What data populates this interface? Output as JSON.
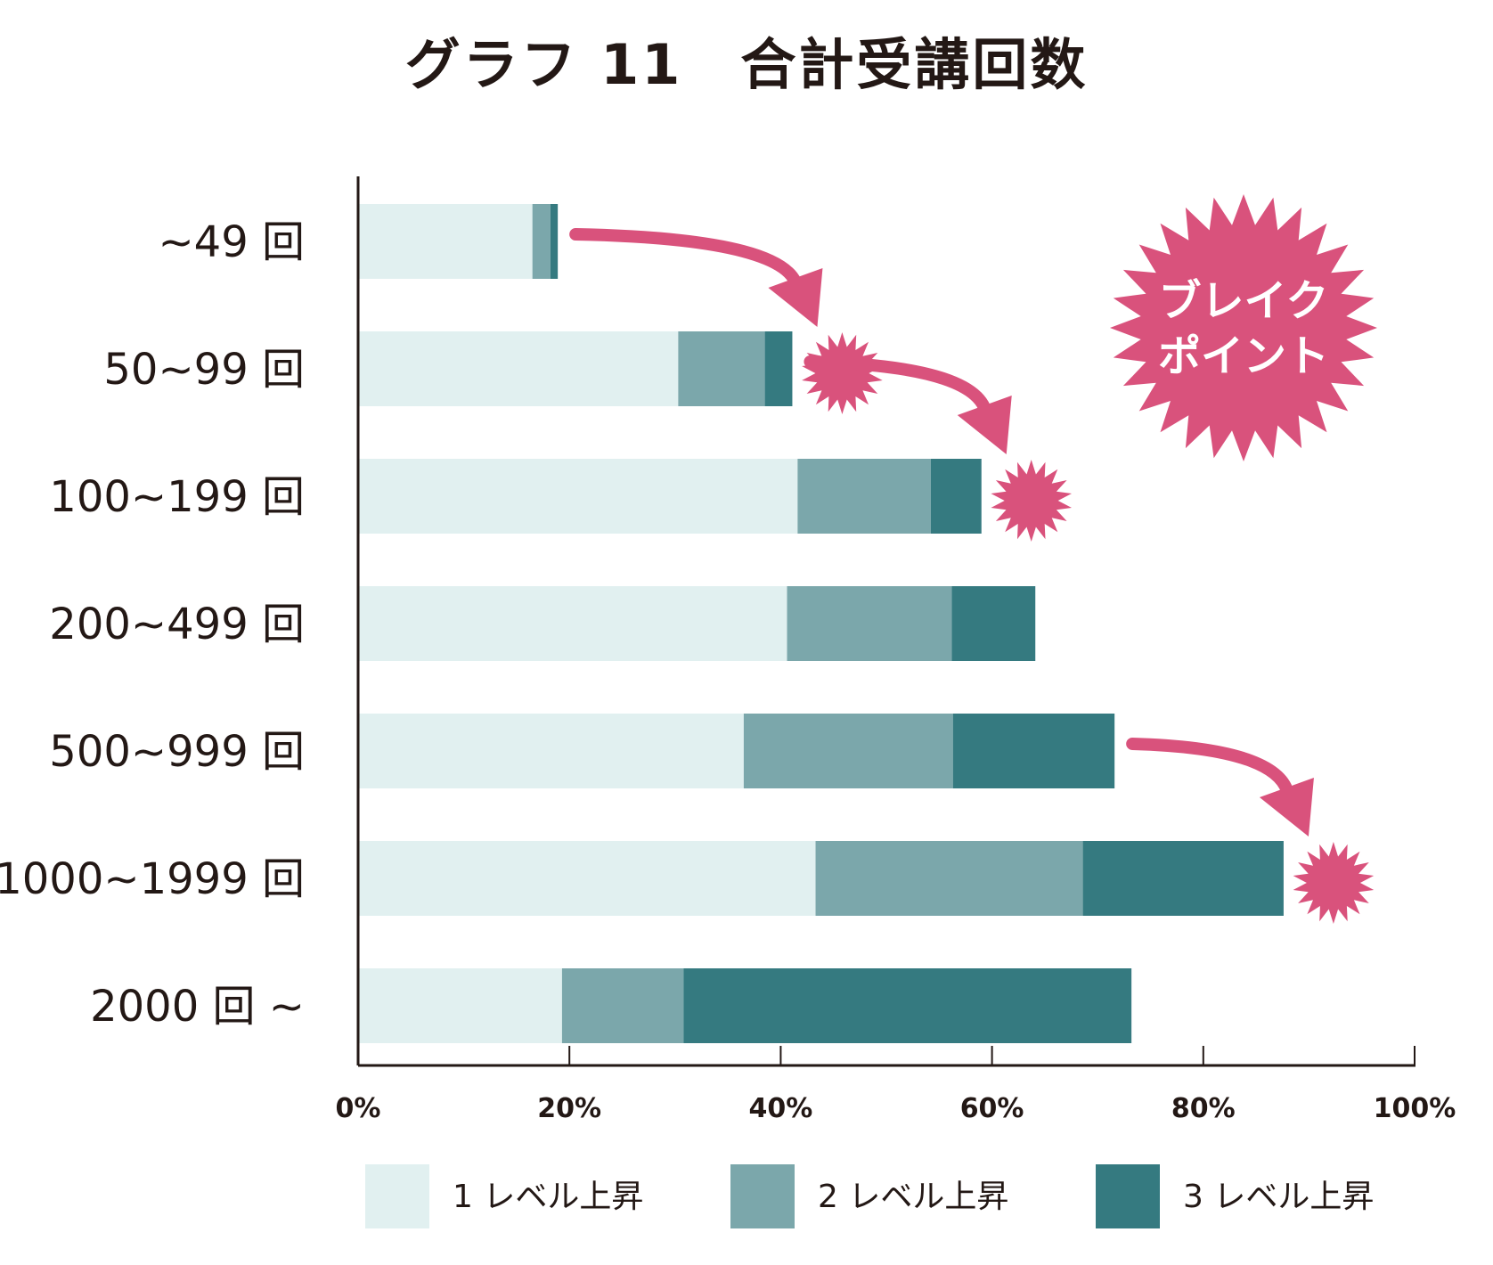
{
  "title": "グラフ 11　合計受講回数",
  "chart_data": {
    "type": "bar",
    "orientation": "horizontal",
    "stacked": true,
    "categories": [
      "~49 回",
      "50~99 回",
      "100~199 回",
      "200~499 回",
      "500~999 回",
      "1000~1999 回",
      "2000 回 ~"
    ],
    "series": [
      {
        "name": "1 レベル上昇",
        "color": "#e1f0f0",
        "values": [
          16.5,
          30.3,
          41.6,
          40.6,
          36.5,
          43.3,
          19.3
        ]
      },
      {
        "name": "2 レベル上昇",
        "color": "#7ba7ab",
        "values": [
          1.7,
          8.2,
          12.6,
          15.6,
          19.8,
          25.3,
          11.5
        ]
      },
      {
        "name": "3 レベル上昇",
        "color": "#357a80",
        "values": [
          0.7,
          2.6,
          4.8,
          7.9,
          15.3,
          19.0,
          42.4
        ]
      }
    ],
    "xlim": [
      0,
      100
    ],
    "xticks": [
      "0%",
      "20%",
      "40%",
      "60%",
      "80%",
      "100%"
    ],
    "grid": false,
    "legend": "bottom",
    "annotation": {
      "text_lines": [
        "ブレイク",
        "ポイント"
      ],
      "color": "#d9527c",
      "marked_categories": [
        "50~99 回",
        "100~199 回",
        "1000~1999 回"
      ]
    }
  }
}
